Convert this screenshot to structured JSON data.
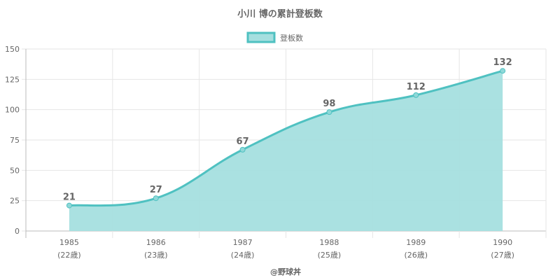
{
  "colors": {
    "line": "#4fc1c1",
    "fill": "#a5dfdf",
    "point": "#8fd8d8",
    "text": "#666666"
  },
  "chart_data": {
    "type": "area",
    "title": "小川 博の累計登板数",
    "x": [
      "1985",
      "1986",
      "1987",
      "1988",
      "1989",
      "1990"
    ],
    "x_sub": [
      "(22歳)",
      "(23歳)",
      "(24歳)",
      "(25歳)",
      "(26歳)",
      "(27歳)"
    ],
    "series": [
      {
        "name": "登板数",
        "values": [
          21,
          27,
          67,
          98,
          112,
          132
        ]
      }
    ],
    "ylim": [
      0,
      150
    ],
    "yticks": [
      0,
      25,
      50,
      75,
      100,
      125,
      150
    ],
    "grid": true,
    "legend": "top-center",
    "credit": "@野球丼"
  }
}
